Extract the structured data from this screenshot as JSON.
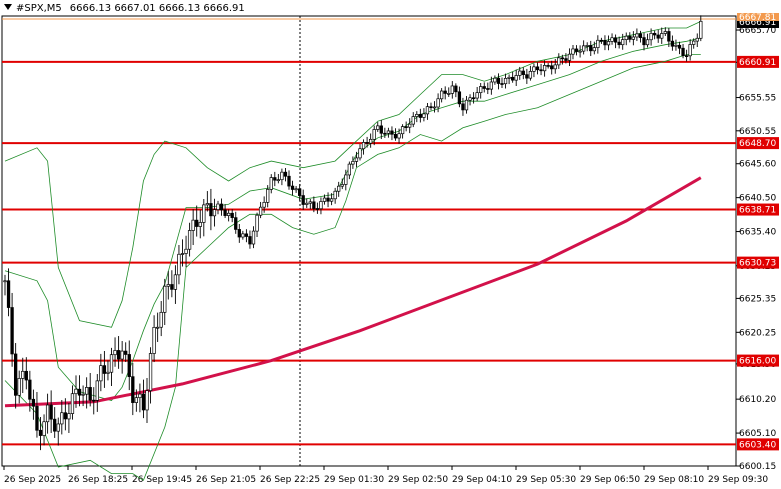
{
  "header": {
    "symbol_tf": "#SPX,M5",
    "ohlc": "6666.13 6667.01 6666.13 6666.91"
  },
  "chart_data": {
    "type": "candlestick",
    "ylim": [
      6600.15,
      6667.81
    ],
    "y_ticks": [
      "6665.70",
      "6660.85",
      "6655.55",
      "6650.55",
      "6645.60",
      "6640.50",
      "6635.40",
      "6630.25",
      "6625.35",
      "6620.25",
      "6615.50",
      "6610.20",
      "6605.10",
      "6600.15"
    ],
    "x_ticks": [
      "26 Sep 2025",
      "26 Sep 18:25",
      "26 Sep 19:45",
      "26 Sep 21:05",
      "26 Sep 22:25",
      "29 Sep 01:30",
      "29 Sep 02:50",
      "29 Sep 04:10",
      "29 Sep 05:30",
      "29 Sep 06:50",
      "29 Sep 08:10",
      "29 Sep 09:30"
    ],
    "price_label": "6666.91",
    "top_label": "6667.81",
    "levels": [
      {
        "price": 6660.91,
        "label": "6660.91"
      },
      {
        "price": 6648.7,
        "label": "6648.70"
      },
      {
        "price": 6638.71,
        "label": "6638.71"
      },
      {
        "price": 6630.73,
        "label": "6630.73"
      },
      {
        "price": 6616.0,
        "label": "6616.00"
      },
      {
        "price": 6603.4,
        "label": "6603.40"
      }
    ],
    "close_path": [
      [
        0,
        6628
      ],
      [
        3,
        6612
      ],
      [
        6,
        6614
      ],
      [
        9,
        6605
      ],
      [
        12,
        6608
      ],
      [
        15,
        6606
      ],
      [
        18,
        6609
      ],
      [
        21,
        6612
      ],
      [
        24,
        6610
      ],
      [
        27,
        6614
      ],
      [
        30,
        6616
      ],
      [
        33,
        6618
      ],
      [
        36,
        6611
      ],
      [
        39,
        6609
      ],
      [
        42,
        6620
      ],
      [
        45,
        6626
      ],
      [
        48,
        6629
      ],
      [
        51,
        6634
      ],
      [
        54,
        6637
      ],
      [
        57,
        6639
      ],
      [
        60,
        6639
      ],
      [
        63,
        6638
      ],
      [
        66,
        6635
      ],
      [
        69,
        6634
      ],
      [
        72,
        6639
      ],
      [
        75,
        6643
      ],
      [
        78,
        6644
      ],
      [
        81,
        6642
      ],
      [
        84,
        6640
      ],
      [
        87,
        6639
      ],
      [
        90,
        6640
      ],
      [
        93,
        6641
      ],
      [
        96,
        6644
      ],
      [
        99,
        6647
      ],
      [
        102,
        6649
      ],
      [
        105,
        6651
      ],
      [
        108,
        6650
      ],
      [
        111,
        6650
      ],
      [
        114,
        6652
      ],
      [
        117,
        6653
      ],
      [
        120,
        6654
      ],
      [
        123,
        6656
      ],
      [
        126,
        6657
      ],
      [
        129,
        6654
      ],
      [
        132,
        6656
      ],
      [
        135,
        6657
      ],
      [
        138,
        6658
      ],
      [
        141,
        6658
      ],
      [
        144,
        6659
      ],
      [
        147,
        6659
      ],
      [
        150,
        6660
      ],
      [
        153,
        6660
      ],
      [
        156,
        6661
      ],
      [
        159,
        6662
      ],
      [
        162,
        6663
      ],
      [
        165,
        6663
      ],
      [
        168,
        6664
      ],
      [
        171,
        6664
      ],
      [
        174,
        6664
      ],
      [
        177,
        6665
      ],
      [
        180,
        6664
      ],
      [
        183,
        6665
      ],
      [
        186,
        6665
      ],
      [
        189,
        6663
      ],
      [
        192,
        6662
      ],
      [
        195,
        6665
      ],
      [
        196,
        6666.91
      ]
    ],
    "ma200": [
      [
        0,
        6609.2
      ],
      [
        25,
        6609.8
      ],
      [
        50,
        6612.5
      ],
      [
        75,
        6616
      ],
      [
        100,
        6620.5
      ],
      [
        125,
        6625.5
      ],
      [
        150,
        6630.5
      ],
      [
        175,
        6637
      ],
      [
        196,
        6643.5
      ]
    ],
    "bb_upper": [
      [
        0,
        6646
      ],
      [
        9,
        6648
      ],
      [
        12,
        6646
      ],
      [
        15,
        6630
      ],
      [
        21,
        6622
      ],
      [
        30,
        6621
      ],
      [
        33,
        6625
      ],
      [
        36,
        6633
      ],
      [
        39,
        6643
      ],
      [
        42,
        6647
      ],
      [
        45,
        6649
      ],
      [
        51,
        6648
      ],
      [
        57,
        6645
      ],
      [
        63,
        6643
      ],
      [
        69,
        6645
      ],
      [
        75,
        6646
      ],
      [
        84,
        6645
      ],
      [
        93,
        6646
      ],
      [
        99,
        6649
      ],
      [
        105,
        6652
      ],
      [
        111,
        6653
      ],
      [
        117,
        6656
      ],
      [
        123,
        6659
      ],
      [
        129,
        6659
      ],
      [
        135,
        6658
      ],
      [
        141,
        6659
      ],
      [
        150,
        6661
      ],
      [
        159,
        6662
      ],
      [
        168,
        6664
      ],
      [
        177,
        6665
      ],
      [
        186,
        6666
      ],
      [
        192,
        6666
      ],
      [
        196,
        6667
      ]
    ],
    "bb_lower": [
      [
        0,
        6613
      ],
      [
        9,
        6608
      ],
      [
        15,
        6600
      ],
      [
        24,
        6601
      ],
      [
        30,
        6599
      ],
      [
        36,
        6599
      ],
      [
        39,
        6598
      ],
      [
        45,
        6606
      ],
      [
        48,
        6612
      ],
      [
        51,
        6630
      ],
      [
        57,
        6633
      ],
      [
        63,
        6636
      ],
      [
        69,
        6638
      ],
      [
        75,
        6638
      ],
      [
        81,
        6636
      ],
      [
        87,
        6635
      ],
      [
        93,
        6636
      ],
      [
        96,
        6640
      ],
      [
        99,
        6645
      ],
      [
        105,
        6647
      ],
      [
        111,
        6648
      ],
      [
        117,
        6650
      ],
      [
        123,
        6649
      ],
      [
        129,
        6651
      ],
      [
        135,
        6652
      ],
      [
        141,
        6653
      ],
      [
        150,
        6654
      ],
      [
        159,
        6656
      ],
      [
        168,
        6658
      ],
      [
        177,
        6660
      ],
      [
        186,
        6661
      ],
      [
        192,
        6662
      ],
      [
        196,
        6662
      ]
    ],
    "colors": {
      "levels": "#e00000",
      "ma": "#d2114a",
      "bands": "#1e8c28",
      "candles": "#000000",
      "price_bg": "#000000"
    }
  }
}
